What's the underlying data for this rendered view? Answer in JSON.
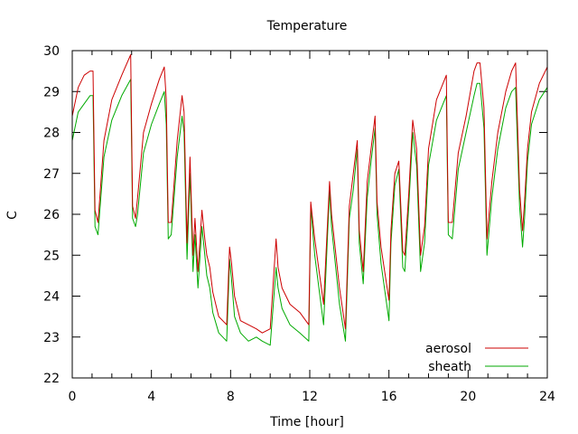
{
  "chart_data": {
    "type": "line",
    "title": "Temperature",
    "xlabel": "Time [hour]",
    "ylabel": "C",
    "xlim": [
      0,
      24
    ],
    "ylim": [
      22,
      30
    ],
    "xticks": [
      0,
      4,
      8,
      12,
      16,
      20,
      24
    ],
    "yticks": [
      22,
      23,
      24,
      25,
      26,
      27,
      28,
      29,
      30
    ],
    "grid": false,
    "legend_position": "bottom-right",
    "series": [
      {
        "name": "aerosol",
        "color": "#cc0000",
        "x": [
          0,
          0.3,
          0.6,
          0.9,
          1.05,
          1.15,
          1.3,
          1.6,
          2.0,
          2.5,
          2.95,
          3.05,
          3.2,
          3.3,
          3.6,
          4.0,
          4.4,
          4.65,
          4.75,
          4.85,
          5.0,
          5.3,
          5.55,
          5.65,
          5.8,
          5.95,
          6.1,
          6.2,
          6.35,
          6.55,
          6.7,
          6.8,
          6.95,
          7.1,
          7.4,
          7.8,
          7.95,
          8.05,
          8.2,
          8.5,
          8.9,
          9.3,
          9.6,
          10.0,
          10.3,
          10.4,
          10.6,
          11.0,
          11.5,
          11.95,
          12.05,
          12.25,
          12.7,
          13.0,
          13.1,
          13.5,
          13.8,
          14.0,
          14.2,
          14.4,
          14.5,
          14.7,
          14.9,
          15.1,
          15.3,
          15.4,
          15.6,
          16.0,
          16.1,
          16.3,
          16.5,
          16.7,
          16.8,
          17.0,
          17.2,
          17.4,
          17.6,
          17.8,
          18.0,
          18.4,
          18.9,
          19.0,
          19.2,
          19.5,
          19.9,
          20.3,
          20.45,
          20.6,
          20.8,
          20.95,
          21.2,
          21.5,
          21.9,
          22.2,
          22.4,
          22.6,
          22.75,
          22.85,
          23.0,
          23.2,
          23.6,
          24.0
        ],
        "y": [
          28.4,
          29.1,
          29.4,
          29.5,
          29.5,
          26.1,
          25.8,
          27.8,
          28.8,
          29.4,
          29.9,
          26.2,
          25.9,
          26.4,
          28.0,
          28.7,
          29.3,
          29.6,
          28.8,
          25.8,
          25.8,
          27.8,
          28.9,
          28.5,
          25.3,
          27.4,
          25.0,
          25.9,
          24.6,
          26.1,
          25.4,
          25.0,
          24.7,
          24.1,
          23.5,
          23.3,
          25.2,
          24.8,
          24.0,
          23.4,
          23.3,
          23.2,
          23.1,
          23.2,
          25.4,
          24.7,
          24.2,
          23.8,
          23.6,
          23.3,
          26.3,
          25.4,
          23.8,
          26.8,
          26.0,
          24.2,
          23.2,
          26.2,
          27.0,
          27.8,
          25.6,
          24.6,
          26.8,
          27.6,
          28.4,
          26.3,
          25.2,
          23.9,
          25.6,
          27.0,
          27.3,
          25.1,
          25.0,
          26.5,
          28.3,
          27.6,
          25.0,
          25.7,
          27.6,
          28.8,
          29.4,
          25.8,
          25.8,
          27.5,
          28.4,
          29.5,
          29.7,
          29.7,
          28.6,
          25.4,
          26.8,
          28.0,
          29.0,
          29.5,
          29.7,
          26.6,
          25.6,
          26.3,
          27.6,
          28.5,
          29.2,
          29.6
        ]
      },
      {
        "name": "sheath",
        "color": "#00aa00",
        "x": [
          0,
          0.3,
          0.6,
          0.9,
          1.05,
          1.15,
          1.3,
          1.6,
          2.0,
          2.5,
          2.95,
          3.05,
          3.2,
          3.3,
          3.6,
          4.0,
          4.4,
          4.65,
          4.75,
          4.85,
          5.0,
          5.3,
          5.55,
          5.65,
          5.8,
          5.95,
          6.1,
          6.2,
          6.35,
          6.55,
          6.7,
          6.8,
          6.95,
          7.1,
          7.4,
          7.8,
          7.95,
          8.05,
          8.2,
          8.5,
          8.9,
          9.3,
          9.6,
          10.0,
          10.3,
          10.4,
          10.6,
          11.0,
          11.5,
          11.95,
          12.05,
          12.25,
          12.7,
          13.0,
          13.1,
          13.5,
          13.8,
          14.0,
          14.2,
          14.4,
          14.5,
          14.7,
          14.9,
          15.1,
          15.3,
          15.4,
          15.6,
          16.0,
          16.1,
          16.3,
          16.5,
          16.7,
          16.8,
          17.0,
          17.2,
          17.4,
          17.6,
          17.8,
          18.0,
          18.4,
          18.9,
          19.0,
          19.2,
          19.5,
          19.9,
          20.3,
          20.45,
          20.6,
          20.8,
          20.95,
          21.2,
          21.5,
          21.9,
          22.2,
          22.4,
          22.6,
          22.75,
          22.85,
          23.0,
          23.2,
          23.6,
          24.0
        ],
        "y": [
          27.8,
          28.5,
          28.7,
          28.9,
          28.9,
          25.7,
          25.5,
          27.4,
          28.3,
          28.9,
          29.3,
          25.9,
          25.7,
          26.0,
          27.5,
          28.2,
          28.7,
          29.0,
          28.2,
          25.4,
          25.5,
          27.4,
          28.4,
          28.0,
          24.9,
          27.0,
          24.6,
          25.5,
          24.2,
          25.7,
          25.0,
          24.5,
          24.2,
          23.6,
          23.1,
          22.9,
          24.9,
          24.4,
          23.5,
          23.1,
          22.9,
          23.0,
          22.9,
          22.8,
          24.7,
          24.2,
          23.7,
          23.3,
          23.1,
          22.9,
          26.2,
          25.0,
          23.3,
          26.6,
          25.7,
          23.8,
          22.9,
          25.9,
          26.6,
          27.6,
          25.3,
          24.3,
          26.4,
          27.3,
          28.1,
          26.0,
          24.8,
          23.4,
          25.3,
          26.7,
          27.1,
          24.7,
          24.6,
          26.2,
          28.0,
          27.2,
          24.6,
          25.3,
          27.2,
          28.3,
          28.9,
          25.5,
          25.4,
          27.1,
          28.0,
          28.9,
          29.2,
          29.2,
          28.1,
          25.0,
          26.4,
          27.6,
          28.6,
          29.0,
          29.1,
          26.2,
          25.2,
          25.9,
          27.3,
          28.2,
          28.8,
          29.1
        ]
      }
    ]
  }
}
